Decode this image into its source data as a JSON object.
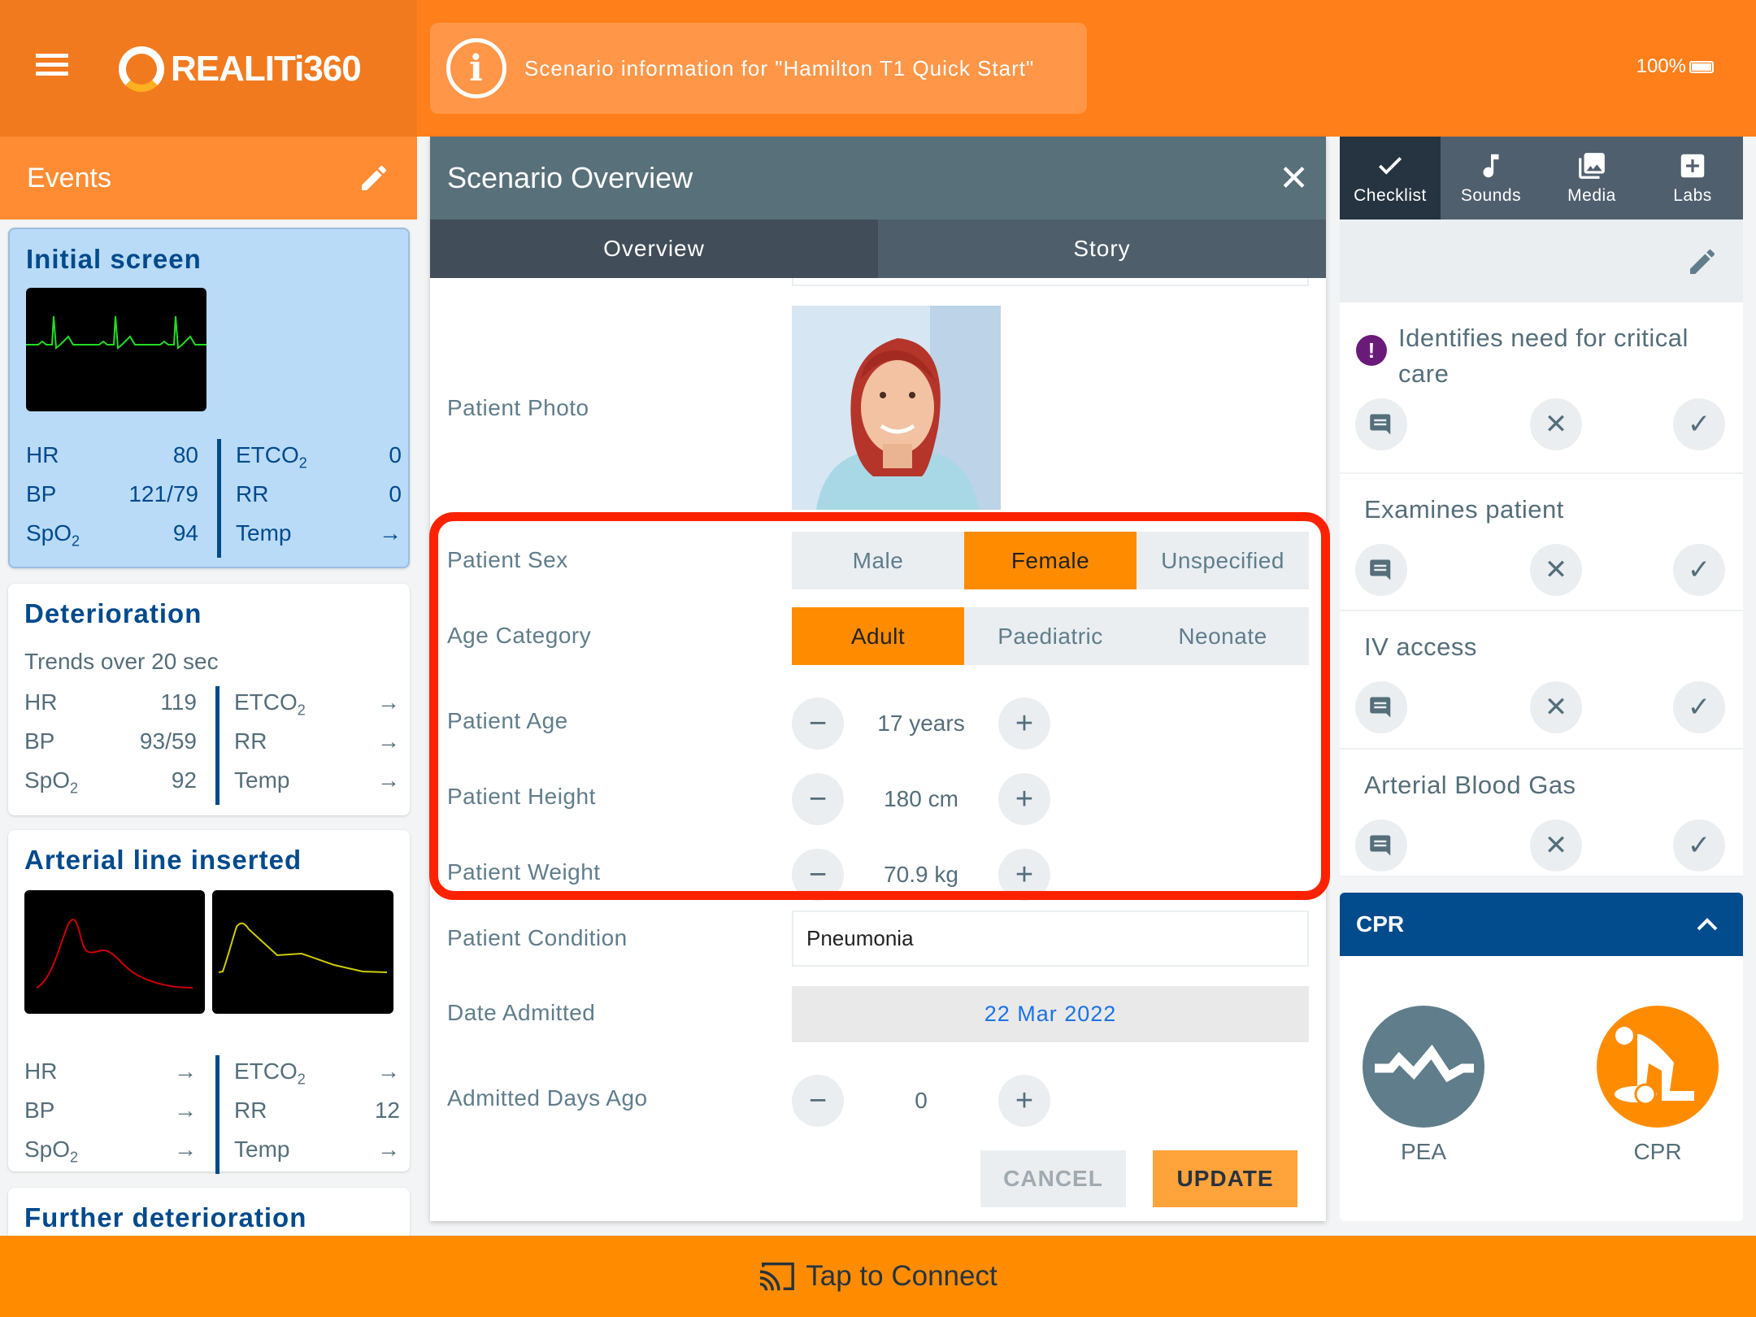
{
  "app": {
    "logo_text": "REALITi360",
    "battery": "100%"
  },
  "banner": {
    "text": "Scenario information for  \"Hamilton T1 Quick Start\""
  },
  "events": {
    "title": "Events",
    "cards": [
      {
        "title": "Initial screen",
        "selected": true,
        "subtitle": "",
        "left": [
          {
            "label": "HR",
            "value": "80"
          },
          {
            "label": "BP",
            "value": "121/79"
          },
          {
            "label": "SpO",
            "sub": "2",
            "value": "94"
          }
        ],
        "right": [
          {
            "label": "ETCO",
            "sub": "2",
            "value": "0"
          },
          {
            "label": "RR",
            "value": "0"
          },
          {
            "label": "Temp",
            "value": "→"
          }
        ]
      },
      {
        "title": "Deterioration",
        "selected": false,
        "subtitle": "Trends over 20 sec",
        "left": [
          {
            "label": "HR",
            "value": "119"
          },
          {
            "label": "BP",
            "value": "93/59"
          },
          {
            "label": "SpO",
            "sub": "2",
            "value": "92"
          }
        ],
        "right": [
          {
            "label": "ETCO",
            "sub": "2",
            "value": "→"
          },
          {
            "label": "RR",
            "value": "→"
          },
          {
            "label": "Temp",
            "value": "→"
          }
        ]
      },
      {
        "title": "Arterial line inserted",
        "selected": false,
        "subtitle": "",
        "left": [
          {
            "label": "HR",
            "value": "→"
          },
          {
            "label": "BP",
            "value": "→"
          },
          {
            "label": "SpO",
            "sub": "2",
            "value": "→"
          }
        ],
        "right": [
          {
            "label": "ETCO",
            "sub": "2",
            "value": "→"
          },
          {
            "label": "RR",
            "value": "12"
          },
          {
            "label": "Temp",
            "value": "→"
          }
        ]
      },
      {
        "title": "Further deterioration",
        "selected": false,
        "subtitle": ""
      }
    ]
  },
  "modal": {
    "title": "Scenario Overview",
    "tabs": [
      {
        "label": "Overview",
        "active": true
      },
      {
        "label": "Story",
        "active": false
      }
    ],
    "fields": {
      "photo_label": "Patient Photo",
      "sex": {
        "label": "Patient Sex",
        "options": [
          "Male",
          "Female",
          "Unspecified"
        ],
        "selected": "Female"
      },
      "age_category": {
        "label": "Age Category",
        "options": [
          "Adult",
          "Paediatric",
          "Neonate"
        ],
        "selected": "Adult"
      },
      "age": {
        "label": "Patient Age",
        "value": "17 years"
      },
      "height": {
        "label": "Patient Height",
        "value": "180 cm"
      },
      "weight": {
        "label": "Patient Weight",
        "value": "70.9 kg"
      },
      "condition": {
        "label": "Patient Condition",
        "value": "Pneumonia"
      },
      "date_admitted": {
        "label": "Date Admitted",
        "value": "22 Mar 2022"
      },
      "days_ago": {
        "label": "Admitted Days Ago",
        "value": "0"
      }
    },
    "cancel_label": "CANCEL",
    "update_label": "UPDATE"
  },
  "right": {
    "tabs": [
      {
        "label": "Checklist",
        "icon": "check-icon",
        "active": true
      },
      {
        "label": "Sounds",
        "icon": "music-note-icon"
      },
      {
        "label": "Media",
        "icon": "image-gallery-icon"
      },
      {
        "label": "Labs",
        "icon": "plus-box-icon"
      }
    ],
    "checklist": [
      {
        "text": "Identifies need for critical care",
        "critical": true
      },
      {
        "text": "Examines patient"
      },
      {
        "text": "IV access"
      },
      {
        "text": "Arterial Blood Gas"
      }
    ],
    "cpr": {
      "title": "CPR",
      "actions": [
        {
          "label": "PEA",
          "color": "#607d8b"
        },
        {
          "label": "CPR",
          "color": "#ff8c00"
        }
      ]
    }
  },
  "bottom": {
    "label": "Tap to Connect"
  },
  "colors": {
    "accent": "#ff8c00",
    "header_blue": "#024b8c",
    "highlight": "#ff2200",
    "critical": "#6a1b7a"
  }
}
